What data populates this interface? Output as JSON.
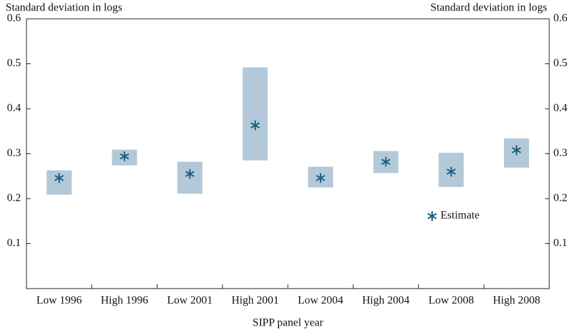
{
  "chart_data": {
    "type": "interval",
    "y_label": "Standard deviation in logs",
    "y2_label": "Standard deviation in logs",
    "x_label": "SIPP panel year",
    "categories": [
      "Low 1996",
      "High 1996",
      "Low 2001",
      "High 2001",
      "Low 2004",
      "High 2004",
      "Low 2008",
      "High 2008"
    ],
    "series": [
      {
        "name": "Estimate",
        "color": "#1b5e7e",
        "values": [
          0.246,
          0.294,
          0.255,
          0.363,
          0.246,
          0.282,
          0.26,
          0.308
        ]
      }
    ],
    "ranges": {
      "color": "#b3c9d9",
      "low": [
        0.209,
        0.274,
        0.211,
        0.285,
        0.225,
        0.257,
        0.226,
        0.269
      ],
      "high": [
        0.263,
        0.309,
        0.282,
        0.492,
        0.271,
        0.306,
        0.302,
        0.334
      ]
    },
    "ylim": [
      0,
      0.6
    ],
    "yticks": [
      0.1,
      0.2,
      0.3,
      0.4,
      0.5,
      0.6
    ],
    "y2lim": [
      0,
      0.6
    ],
    "y2ticks": [
      0.1,
      0.2,
      0.3,
      0.4,
      0.5,
      0.6
    ],
    "grid": false
  }
}
